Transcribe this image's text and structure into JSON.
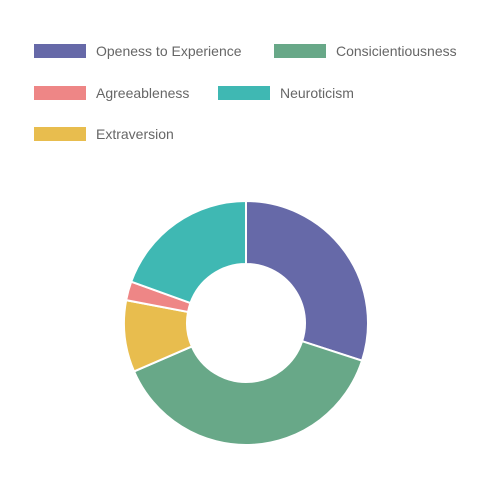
{
  "chart_data": {
    "type": "pie",
    "variant": "doughnut",
    "legend_position": "top",
    "labels": [
      "Openess to Experience",
      "Consicientiousness",
      "Agreeableness",
      "Neuroticism",
      "Extraversion"
    ],
    "colors": [
      "#6669a8",
      "#68a888",
      "#ee8686",
      "#3fb8b3",
      "#e8bd4e"
    ],
    "segment_order": [
      0,
      1,
      4,
      2,
      3
    ],
    "values": [
      30,
      38.5,
      2.5,
      19.5,
      9.5
    ]
  }
}
